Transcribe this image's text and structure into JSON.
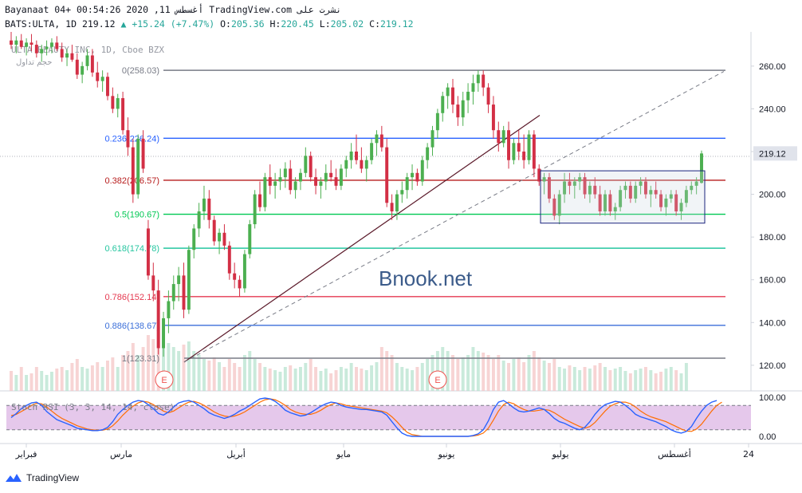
{
  "header": {
    "line1": "Bayanaat 04+ 00:54:26 2020 ,11 أغسطس TradingView.com نشرت على",
    "symbol": "BATS:ULTA, 1D",
    "last": "219.12",
    "change": "+15.24 (+7.47%)",
    "o_label": "O:",
    "o": "205.36",
    "h_label": "H:",
    "h": "220.45",
    "l_label": "L:",
    "l": "205.02",
    "c_label": "C:",
    "c": "219.12"
  },
  "watermark": {
    "title": "ULTA BEAUTY INC, 1D, Cboe BZX",
    "volume_label": "حجم تداول",
    "brand": "Bnook.net"
  },
  "colors": {
    "up": "#26a69a",
    "down": "#ef5350",
    "candle_up": "#4caf50",
    "candle_down": "#d32f45",
    "stoch_k": "#2962ff",
    "stoch_d": "#ff6d00",
    "stoch_band": "#e1bee7"
  },
  "stoch": {
    "label": "Stoch RSI (3, 3, 14, 14, close)",
    "ticks": [
      "100.00",
      "0.00"
    ]
  },
  "footer": {
    "brand": "TradingView"
  },
  "chart_data": {
    "type": "candlestick",
    "title": "ULTA BEAUTY INC, 1D, Cboe BZX",
    "y_axis_ticks": [
      260,
      240,
      220,
      200,
      180,
      160,
      140,
      120
    ],
    "y_axis_labels": [
      "260.00",
      "240.00",
      "220.00",
      "200.00",
      "180.00",
      "160.00",
      "140.00",
      "120.00"
    ],
    "ylim": [
      108,
      276
    ],
    "last_price": 219.12,
    "x_axis_labels": [
      "فبراير",
      "مارس",
      "أبريل",
      "مايو",
      "يونيو",
      "يوليو",
      "أغسطس",
      "24"
    ],
    "fib_levels": [
      {
        "ratio": "0.236",
        "price": 226.24,
        "label": "0.236(226.24)",
        "color": "#2962ff"
      },
      {
        "ratio": "0.382",
        "price": 206.57,
        "label": "0.382(206.57)",
        "color": "#b71c1c"
      },
      {
        "ratio": "0.5",
        "price": 190.67,
        "label": "0.5(190.67)",
        "color": "#00c853"
      },
      {
        "ratio": "0.618",
        "price": 174.78,
        "label": "0.618(174.78)",
        "color": "#26c6a0"
      },
      {
        "ratio": "0.786",
        "price": 152.14,
        "label": "0.786(152.14)",
        "color": "#e53950"
      },
      {
        "ratio": "0.886",
        "price": 138.67,
        "label": "0.886(138.67)",
        "color": "#3b6fd9"
      },
      {
        "ratio": "1",
        "price": 123.31,
        "label": "1(123.31)",
        "color": "#787b86"
      },
      {
        "ratio": "0",
        "price": 258.03,
        "label": "0(258.03)",
        "color": "#787b86"
      }
    ],
    "earnings_markers": [
      "E",
      "E"
    ],
    "candles": [
      {
        "o": 272,
        "h": 276,
        "l": 268,
        "c": 270
      },
      {
        "o": 270,
        "h": 274,
        "l": 266,
        "c": 272
      },
      {
        "o": 272,
        "h": 275,
        "l": 268,
        "c": 269
      },
      {
        "o": 269,
        "h": 273,
        "l": 265,
        "c": 271
      },
      {
        "o": 271,
        "h": 275,
        "l": 267,
        "c": 270
      },
      {
        "o": 270,
        "h": 272,
        "l": 264,
        "c": 266
      },
      {
        "o": 266,
        "h": 270,
        "l": 262,
        "c": 268
      },
      {
        "o": 268,
        "h": 272,
        "l": 265,
        "c": 269
      },
      {
        "o": 269,
        "h": 273,
        "l": 266,
        "c": 271
      },
      {
        "o": 271,
        "h": 274,
        "l": 267,
        "c": 268
      },
      {
        "o": 268,
        "h": 271,
        "l": 262,
        "c": 264
      },
      {
        "o": 264,
        "h": 268,
        "l": 260,
        "c": 266
      },
      {
        "o": 266,
        "h": 270,
        "l": 262,
        "c": 263
      },
      {
        "o": 263,
        "h": 266,
        "l": 254,
        "c": 256
      },
      {
        "o": 256,
        "h": 262,
        "l": 252,
        "c": 260
      },
      {
        "o": 260,
        "h": 268,
        "l": 258,
        "c": 265
      },
      {
        "o": 265,
        "h": 268,
        "l": 255,
        "c": 257
      },
      {
        "o": 257,
        "h": 262,
        "l": 250,
        "c": 253
      },
      {
        "o": 253,
        "h": 258,
        "l": 248,
        "c": 255
      },
      {
        "o": 255,
        "h": 257,
        "l": 244,
        "c": 246
      },
      {
        "o": 246,
        "h": 250,
        "l": 238,
        "c": 240
      },
      {
        "o": 240,
        "h": 247,
        "l": 236,
        "c": 245
      },
      {
        "o": 245,
        "h": 248,
        "l": 228,
        "c": 230
      },
      {
        "o": 230,
        "h": 236,
        "l": 218,
        "c": 222
      },
      {
        "o": 222,
        "h": 226,
        "l": 196,
        "c": 200
      },
      {
        "o": 200,
        "h": 228,
        "l": 198,
        "c": 226
      },
      {
        "o": 226,
        "h": 230,
        "l": 210,
        "c": 212
      },
      {
        "o": 184,
        "h": 188,
        "l": 160,
        "c": 162
      },
      {
        "o": 162,
        "h": 168,
        "l": 150,
        "c": 155
      },
      {
        "o": 155,
        "h": 160,
        "l": 125,
        "c": 128
      },
      {
        "o": 128,
        "h": 145,
        "l": 124,
        "c": 142
      },
      {
        "o": 142,
        "h": 155,
        "l": 135,
        "c": 150
      },
      {
        "o": 150,
        "h": 162,
        "l": 146,
        "c": 158
      },
      {
        "o": 158,
        "h": 166,
        "l": 150,
        "c": 162
      },
      {
        "o": 162,
        "h": 168,
        "l": 142,
        "c": 146
      },
      {
        "o": 146,
        "h": 176,
        "l": 144,
        "c": 174
      },
      {
        "o": 174,
        "h": 186,
        "l": 170,
        "c": 184
      },
      {
        "o": 184,
        "h": 196,
        "l": 180,
        "c": 192
      },
      {
        "o": 192,
        "h": 204,
        "l": 188,
        "c": 198
      },
      {
        "o": 198,
        "h": 202,
        "l": 184,
        "c": 188
      },
      {
        "o": 188,
        "h": 190,
        "l": 176,
        "c": 178
      },
      {
        "o": 178,
        "h": 184,
        "l": 172,
        "c": 182
      },
      {
        "o": 182,
        "h": 186,
        "l": 174,
        "c": 176
      },
      {
        "o": 176,
        "h": 178,
        "l": 160,
        "c": 163
      },
      {
        "o": 163,
        "h": 168,
        "l": 156,
        "c": 160
      },
      {
        "o": 160,
        "h": 162,
        "l": 152,
        "c": 156
      },
      {
        "o": 156,
        "h": 174,
        "l": 154,
        "c": 172
      },
      {
        "o": 172,
        "h": 188,
        "l": 170,
        "c": 186
      },
      {
        "o": 186,
        "h": 202,
        "l": 184,
        "c": 200
      },
      {
        "o": 200,
        "h": 206,
        "l": 192,
        "c": 194
      },
      {
        "o": 194,
        "h": 210,
        "l": 192,
        "c": 208
      },
      {
        "o": 208,
        "h": 214,
        "l": 200,
        "c": 204
      },
      {
        "o": 204,
        "h": 210,
        "l": 198,
        "c": 206
      },
      {
        "o": 206,
        "h": 212,
        "l": 202,
        "c": 208
      },
      {
        "o": 208,
        "h": 215,
        "l": 203,
        "c": 212
      },
      {
        "o": 212,
        "h": 216,
        "l": 200,
        "c": 202
      },
      {
        "o": 202,
        "h": 208,
        "l": 198,
        "c": 206
      },
      {
        "o": 206,
        "h": 212,
        "l": 202,
        "c": 210
      },
      {
        "o": 210,
        "h": 222,
        "l": 208,
        "c": 218
      },
      {
        "o": 218,
        "h": 220,
        "l": 206,
        "c": 208
      },
      {
        "o": 208,
        "h": 212,
        "l": 200,
        "c": 204
      },
      {
        "o": 204,
        "h": 208,
        "l": 198,
        "c": 206
      },
      {
        "o": 206,
        "h": 214,
        "l": 202,
        "c": 210
      },
      {
        "o": 210,
        "h": 216,
        "l": 206,
        "c": 208
      },
      {
        "o": 208,
        "h": 212,
        "l": 202,
        "c": 204
      },
      {
        "o": 204,
        "h": 214,
        "l": 202,
        "c": 212
      },
      {
        "o": 212,
        "h": 218,
        "l": 208,
        "c": 216
      },
      {
        "o": 216,
        "h": 224,
        "l": 212,
        "c": 220
      },
      {
        "o": 220,
        "h": 228,
        "l": 214,
        "c": 216
      },
      {
        "o": 216,
        "h": 222,
        "l": 210,
        "c": 212
      },
      {
        "o": 212,
        "h": 218,
        "l": 206,
        "c": 216
      },
      {
        "o": 216,
        "h": 226,
        "l": 214,
        "c": 224
      },
      {
        "o": 224,
        "h": 230,
        "l": 218,
        "c": 228
      },
      {
        "o": 228,
        "h": 232,
        "l": 220,
        "c": 222
      },
      {
        "o": 222,
        "h": 226,
        "l": 194,
        "c": 196
      },
      {
        "o": 196,
        "h": 200,
        "l": 188,
        "c": 192
      },
      {
        "o": 192,
        "h": 202,
        "l": 188,
        "c": 200
      },
      {
        "o": 200,
        "h": 206,
        "l": 196,
        "c": 202
      },
      {
        "o": 202,
        "h": 210,
        "l": 198,
        "c": 208
      },
      {
        "o": 208,
        "h": 214,
        "l": 202,
        "c": 210
      },
      {
        "o": 210,
        "h": 212,
        "l": 204,
        "c": 206
      },
      {
        "o": 206,
        "h": 218,
        "l": 204,
        "c": 216
      },
      {
        "o": 216,
        "h": 224,
        "l": 212,
        "c": 222
      },
      {
        "o": 222,
        "h": 232,
        "l": 218,
        "c": 230
      },
      {
        "o": 230,
        "h": 240,
        "l": 226,
        "c": 238
      },
      {
        "o": 238,
        "h": 248,
        "l": 234,
        "c": 246
      },
      {
        "o": 246,
        "h": 252,
        "l": 240,
        "c": 250
      },
      {
        "o": 250,
        "h": 254,
        "l": 238,
        "c": 242
      },
      {
        "o": 242,
        "h": 246,
        "l": 232,
        "c": 236
      },
      {
        "o": 236,
        "h": 248,
        "l": 232,
        "c": 244
      },
      {
        "o": 244,
        "h": 252,
        "l": 238,
        "c": 248
      },
      {
        "o": 248,
        "h": 256,
        "l": 242,
        "c": 252
      },
      {
        "o": 252,
        "h": 258,
        "l": 248,
        "c": 256
      },
      {
        "o": 256,
        "h": 258,
        "l": 246,
        "c": 250
      },
      {
        "o": 250,
        "h": 252,
        "l": 238,
        "c": 242
      },
      {
        "o": 242,
        "h": 246,
        "l": 226,
        "c": 230
      },
      {
        "o": 230,
        "h": 234,
        "l": 220,
        "c": 224
      },
      {
        "o": 224,
        "h": 232,
        "l": 222,
        "c": 230
      },
      {
        "o": 230,
        "h": 234,
        "l": 212,
        "c": 216
      },
      {
        "o": 216,
        "h": 226,
        "l": 214,
        "c": 224
      },
      {
        "o": 224,
        "h": 230,
        "l": 216,
        "c": 220
      },
      {
        "o": 220,
        "h": 228,
        "l": 212,
        "c": 216
      },
      {
        "o": 216,
        "h": 230,
        "l": 214,
        "c": 228
      },
      {
        "o": 228,
        "h": 230,
        "l": 208,
        "c": 212
      },
      {
        "o": 212,
        "h": 214,
        "l": 204,
        "c": 206
      },
      {
        "o": 206,
        "h": 210,
        "l": 200,
        "c": 208
      },
      {
        "o": 208,
        "h": 210,
        "l": 196,
        "c": 198
      },
      {
        "o": 198,
        "h": 200,
        "l": 188,
        "c": 190
      },
      {
        "o": 190,
        "h": 202,
        "l": 186,
        "c": 200
      },
      {
        "o": 200,
        "h": 210,
        "l": 196,
        "c": 206
      },
      {
        "o": 206,
        "h": 210,
        "l": 200,
        "c": 204
      },
      {
        "o": 204,
        "h": 208,
        "l": 198,
        "c": 206
      },
      {
        "o": 206,
        "h": 210,
        "l": 202,
        "c": 208
      },
      {
        "o": 208,
        "h": 210,
        "l": 198,
        "c": 200
      },
      {
        "o": 200,
        "h": 206,
        "l": 196,
        "c": 204
      },
      {
        "o": 204,
        "h": 208,
        "l": 198,
        "c": 200
      },
      {
        "o": 200,
        "h": 204,
        "l": 190,
        "c": 192
      },
      {
        "o": 192,
        "h": 202,
        "l": 190,
        "c": 200
      },
      {
        "o": 200,
        "h": 202,
        "l": 190,
        "c": 192
      },
      {
        "o": 192,
        "h": 196,
        "l": 188,
        "c": 194
      },
      {
        "o": 194,
        "h": 204,
        "l": 192,
        "c": 202
      },
      {
        "o": 202,
        "h": 206,
        "l": 198,
        "c": 204
      },
      {
        "o": 204,
        "h": 206,
        "l": 196,
        "c": 198
      },
      {
        "o": 198,
        "h": 206,
        "l": 196,
        "c": 204
      },
      {
        "o": 204,
        "h": 208,
        "l": 200,
        "c": 206
      },
      {
        "o": 206,
        "h": 208,
        "l": 198,
        "c": 200
      },
      {
        "o": 200,
        "h": 204,
        "l": 194,
        "c": 202
      },
      {
        "o": 202,
        "h": 206,
        "l": 198,
        "c": 200
      },
      {
        "o": 200,
        "h": 202,
        "l": 192,
        "c": 194
      },
      {
        "o": 194,
        "h": 200,
        "l": 190,
        "c": 198
      },
      {
        "o": 198,
        "h": 202,
        "l": 196,
        "c": 200
      },
      {
        "o": 200,
        "h": 202,
        "l": 190,
        "c": 192
      },
      {
        "o": 192,
        "h": 198,
        "l": 188,
        "c": 196
      },
      {
        "o": 196,
        "h": 204,
        "l": 194,
        "c": 202
      },
      {
        "o": 202,
        "h": 206,
        "l": 200,
        "c": 204
      },
      {
        "o": 204,
        "h": 208,
        "l": 200,
        "c": 206
      },
      {
        "o": 205.36,
        "h": 220.45,
        "l": 205.02,
        "c": 219.12
      }
    ],
    "volume": [
      0.25,
      0.2,
      0.3,
      0.2,
      0.22,
      0.3,
      0.25,
      0.2,
      0.24,
      0.28,
      0.3,
      0.26,
      0.35,
      0.4,
      0.3,
      0.28,
      0.32,
      0.36,
      0.3,
      0.38,
      0.42,
      0.3,
      0.45,
      0.5,
      0.6,
      0.45,
      0.55,
      0.7,
      0.65,
      0.8,
      0.75,
      0.6,
      0.55,
      0.5,
      0.58,
      0.62,
      0.5,
      0.45,
      0.4,
      0.38,
      0.42,
      0.36,
      0.3,
      0.4,
      0.35,
      0.3,
      0.45,
      0.5,
      0.4,
      0.35,
      0.3,
      0.28,
      0.26,
      0.24,
      0.3,
      0.32,
      0.28,
      0.3,
      0.35,
      0.4,
      0.3,
      0.25,
      0.28,
      0.22,
      0.26,
      0.3,
      0.28,
      0.35,
      0.3,
      0.28,
      0.26,
      0.32,
      0.36,
      0.55,
      0.5,
      0.45,
      0.35,
      0.3,
      0.28,
      0.26,
      0.3,
      0.35,
      0.4,
      0.45,
      0.5,
      0.55,
      0.5,
      0.45,
      0.4,
      0.42,
      0.45,
      0.55,
      0.5,
      0.48,
      0.45,
      0.4,
      0.45,
      0.38,
      0.35,
      0.4,
      0.42,
      0.36,
      0.45,
      0.5,
      0.42,
      0.38,
      0.35,
      0.4,
      0.3,
      0.28,
      0.32,
      0.3,
      0.26,
      0.3,
      0.28,
      0.32,
      0.35,
      0.3,
      0.26,
      0.28,
      0.3,
      0.25,
      0.22,
      0.26,
      0.28,
      0.3,
      0.26,
      0.22,
      0.24,
      0.28,
      0.3,
      0.26,
      0.22,
      0.35
    ],
    "stoch_k": [
      50,
      60,
      72,
      80,
      86,
      88,
      80,
      65,
      55,
      45,
      40,
      35,
      30,
      24,
      22,
      20,
      18,
      18,
      20,
      26,
      40,
      58,
      70,
      80,
      88,
      92,
      90,
      82,
      72,
      60,
      56,
      64,
      76,
      86,
      90,
      92,
      88,
      80,
      72,
      62,
      56,
      52,
      48,
      52,
      58,
      66,
      72,
      80,
      88,
      96,
      98,
      96,
      90,
      80,
      68,
      62,
      58,
      54,
      56,
      62,
      70,
      78,
      84,
      88,
      86,
      80,
      76,
      74,
      72,
      70,
      70,
      68,
      66,
      64,
      56,
      40,
      25,
      12,
      6,
      4,
      4,
      4,
      4,
      4,
      4,
      4,
      4,
      4,
      4,
      4,
      4,
      6,
      10,
      20,
      42,
      70,
      88,
      92,
      84,
      74,
      66,
      64,
      66,
      70,
      74,
      70,
      60,
      48,
      40,
      36,
      30,
      24,
      20,
      26,
      40,
      58,
      72,
      82,
      86,
      90,
      88,
      80,
      70,
      58,
      52,
      48,
      44,
      40,
      34,
      28,
      20,
      15,
      12,
      16,
      28,
      48,
      66,
      80,
      88,
      92
    ],
    "stoch_d": [
      55,
      58,
      65,
      72,
      80,
      85,
      84,
      76,
      66,
      56,
      48,
      42,
      36,
      30,
      26,
      22,
      20,
      19,
      19,
      22,
      30,
      42,
      56,
      68,
      78,
      86,
      90,
      88,
      82,
      74,
      66,
      62,
      66,
      74,
      82,
      88,
      90,
      86,
      80,
      72,
      64,
      58,
      54,
      52,
      54,
      58,
      64,
      72,
      80,
      88,
      94,
      96,
      94,
      88,
      80,
      70,
      64,
      60,
      58,
      58,
      62,
      68,
      76,
      82,
      86,
      84,
      80,
      78,
      76,
      74,
      72,
      70,
      68,
      66,
      62,
      52,
      40,
      26,
      14,
      8,
      6,
      4,
      4,
      4,
      4,
      4,
      4,
      4,
      4,
      4,
      4,
      5,
      7,
      12,
      24,
      44,
      66,
      82,
      88,
      84,
      76,
      70,
      66,
      66,
      68,
      70,
      68,
      62,
      54,
      46,
      40,
      34,
      28,
      24,
      28,
      38,
      52,
      66,
      78,
      84,
      88,
      88,
      84,
      76,
      66,
      58,
      52,
      48,
      44,
      40,
      34,
      28,
      22,
      17,
      16,
      22,
      34,
      50,
      66,
      80,
      88
    ]
  }
}
